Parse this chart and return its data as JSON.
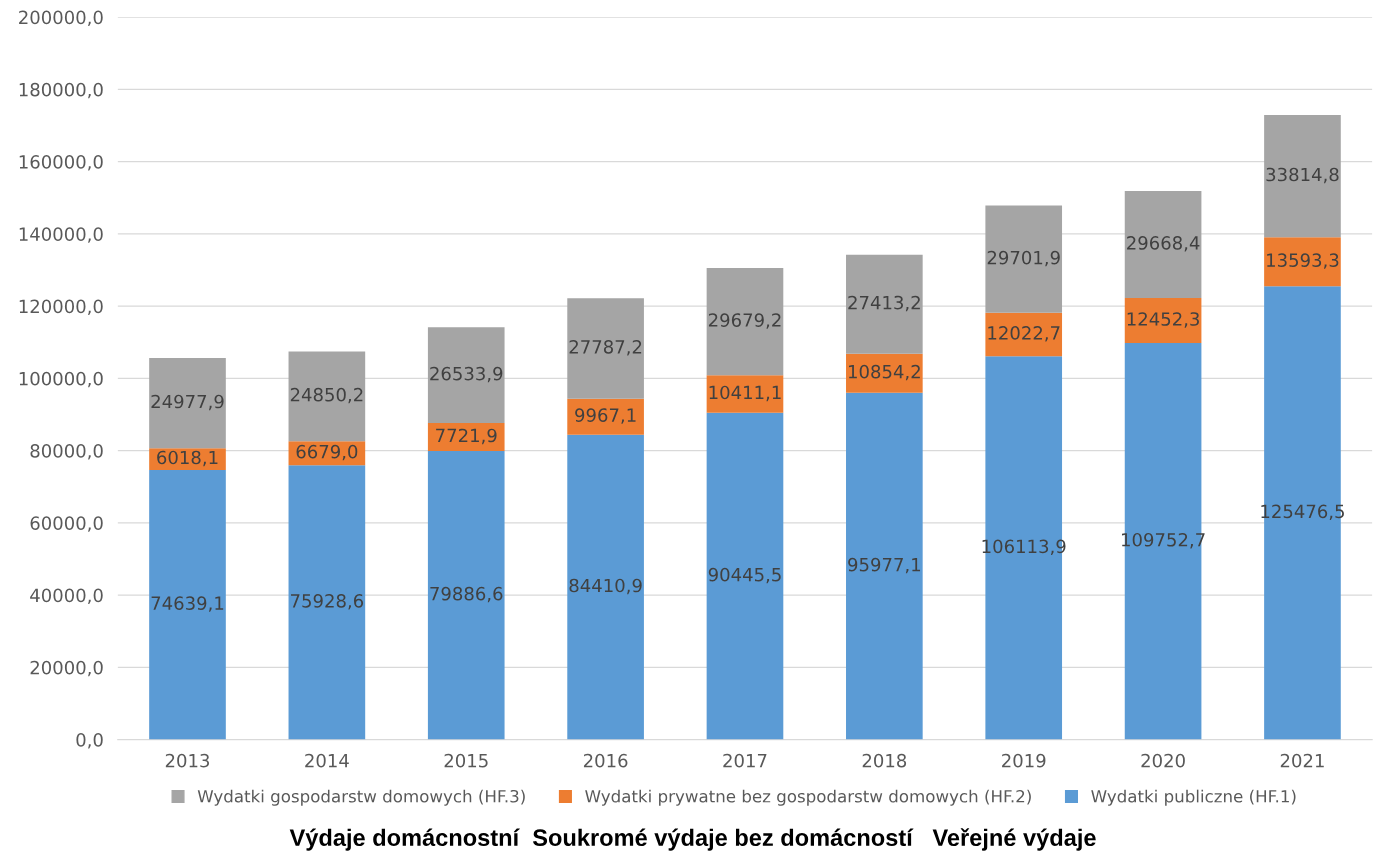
{
  "chart_data": {
    "type": "bar",
    "stacked": true,
    "categories": [
      "2013",
      "2014",
      "2015",
      "2016",
      "2017",
      "2018",
      "2019",
      "2020",
      "2021"
    ],
    "series": [
      {
        "name": "Wydatki publiczne (HF.1)",
        "color": "#5b9bd5",
        "values": [
          74639.1,
          75928.6,
          79886.6,
          84410.9,
          90445.5,
          95977.1,
          106113.9,
          109752.7,
          125476.5
        ],
        "value_labels": [
          "74639,1",
          "75928,6",
          "79886,6",
          "84410,9",
          "90445,5",
          "95977,1",
          "106113,9",
          "109752,7",
          "125476,5"
        ]
      },
      {
        "name": "Wydatki prywatne bez gospodarstw domowych (HF.2)",
        "color": "#ed7d31",
        "values": [
          6018.1,
          6679.0,
          7721.9,
          9967.1,
          10411.1,
          10854.2,
          12022.7,
          12452.3,
          13593.3
        ],
        "value_labels": [
          "6018,1",
          "6679,0",
          "7721,9",
          "9967,1",
          "10411,1",
          "10854,2",
          "12022,7",
          "12452,3",
          "13593,3"
        ]
      },
      {
        "name": "Wydatki gospodarstw domowych (HF.3)",
        "color": "#a5a5a5",
        "values": [
          24977.9,
          24850.2,
          26533.9,
          27787.2,
          29679.2,
          27413.2,
          29701.9,
          29668.4,
          33814.8
        ],
        "value_labels": [
          "24977,9",
          "24850,2",
          "26533,9",
          "27787,2",
          "29679,2",
          "27413,2",
          "29701,9",
          "29668,4",
          "33814,8"
        ]
      }
    ],
    "ylim": [
      0,
      200000
    ],
    "yticks": [
      {
        "value": 0,
        "label": "0,0"
      },
      {
        "value": 20000,
        "label": "20000,0"
      },
      {
        "value": 40000,
        "label": "40000,0"
      },
      {
        "value": 60000,
        "label": "60000,0"
      },
      {
        "value": 80000,
        "label": "80000,0"
      },
      {
        "value": 100000,
        "label": "100000,0"
      },
      {
        "value": 120000,
        "label": "120000,0"
      },
      {
        "value": 140000,
        "label": "140000,0"
      },
      {
        "value": 160000,
        "label": "160000,0"
      },
      {
        "value": 180000,
        "label": "180000,0"
      },
      {
        "value": 200000,
        "label": "200000,0"
      }
    ],
    "grid": "y",
    "legend": "bottom",
    "annotations": [
      "Výdaje domácnostní  Soukromé výdaje bez domácností   Veřejné výdaje"
    ]
  }
}
